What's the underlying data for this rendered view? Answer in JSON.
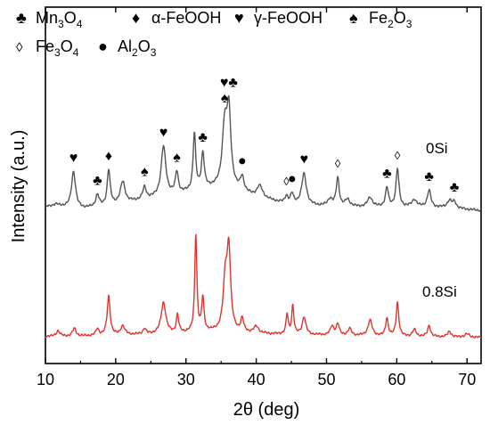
{
  "chart_data": {
    "type": "line",
    "title": "",
    "xlabel": "2θ (deg)",
    "ylabel": "Intensity (a.u.)",
    "xlim": [
      10,
      72
    ],
    "x_ticks": [
      10,
      20,
      30,
      40,
      50,
      60,
      70
    ],
    "y_ticks_shown": false,
    "grid": false,
    "legend_position": "top",
    "legend": [
      {
        "symbol": "♣",
        "parts": [
          {
            "t": "Mn"
          },
          {
            "t": "3",
            "sub": true
          },
          {
            "t": "O"
          },
          {
            "t": "4",
            "sub": true
          }
        ]
      },
      {
        "symbol": "♦",
        "parts": [
          {
            "t": "α-FeOOH"
          }
        ]
      },
      {
        "symbol": "♥",
        "parts": [
          {
            "t": "γ-FeOOH"
          }
        ]
      },
      {
        "symbol": "♠",
        "parts": [
          {
            "t": "Fe"
          },
          {
            "t": "2",
            "sub": true
          },
          {
            "t": "O"
          },
          {
            "t": "3",
            "sub": true
          }
        ]
      },
      {
        "symbol": "◊",
        "parts": [
          {
            "t": "Fe"
          },
          {
            "t": "3",
            "sub": true
          },
          {
            "t": "O"
          },
          {
            "t": "4",
            "sub": true
          }
        ]
      },
      {
        "symbol": "●",
        "parts": [
          {
            "t": "Al"
          },
          {
            "t": "2",
            "sub": true
          },
          {
            "t": "O"
          },
          {
            "t": "3",
            "sub": true
          }
        ]
      }
    ],
    "series": [
      {
        "name": "0Si",
        "color": "#555555",
        "baseline": [
          [
            10,
            0.08
          ],
          [
            11.5,
            0.1
          ],
          [
            14,
            0.06
          ],
          [
            18,
            0.08
          ],
          [
            22,
            0.12
          ],
          [
            26,
            0.16
          ],
          [
            30,
            0.2
          ],
          [
            34,
            0.24
          ],
          [
            37,
            0.22
          ],
          [
            40,
            0.16
          ],
          [
            44,
            0.11
          ],
          [
            48,
            0.09
          ],
          [
            52,
            0.08
          ],
          [
            56,
            0.08
          ],
          [
            60,
            0.08
          ],
          [
            64,
            0.08
          ],
          [
            68,
            0.07
          ],
          [
            72,
            0.05
          ]
        ],
        "peaks": [
          {
            "x": 14.0,
            "h": 0.32,
            "w": 0.35
          },
          {
            "x": 17.4,
            "h": 0.1,
            "w": 0.3
          },
          {
            "x": 19.0,
            "h": 0.3,
            "w": 0.25
          },
          {
            "x": 21.0,
            "h": 0.18,
            "w": 0.4
          },
          {
            "x": 24.1,
            "h": 0.1,
            "w": 0.3
          },
          {
            "x": 26.8,
            "h": 0.42,
            "w": 0.4
          },
          {
            "x": 28.7,
            "h": 0.18,
            "w": 0.25
          },
          {
            "x": 31.2,
            "h": 0.48,
            "w": 0.22
          },
          {
            "x": 32.4,
            "h": 0.3,
            "w": 0.25
          },
          {
            "x": 35.5,
            "h": 0.5,
            "w": 0.4
          },
          {
            "x": 36.1,
            "h": 0.62,
            "w": 0.35
          },
          {
            "x": 38.0,
            "h": 0.12,
            "w": 0.3
          },
          {
            "x": 40.5,
            "h": 0.1,
            "w": 0.5
          },
          {
            "x": 44.3,
            "h": 0.06,
            "w": 0.25
          },
          {
            "x": 45.1,
            "h": 0.08,
            "w": 0.25
          },
          {
            "x": 46.8,
            "h": 0.26,
            "w": 0.4
          },
          {
            "x": 50.5,
            "h": 0.06,
            "w": 0.4
          },
          {
            "x": 51.6,
            "h": 0.24,
            "w": 0.25
          },
          {
            "x": 53.0,
            "h": 0.06,
            "w": 0.4
          },
          {
            "x": 56.2,
            "h": 0.08,
            "w": 0.4
          },
          {
            "x": 58.6,
            "h": 0.16,
            "w": 0.25
          },
          {
            "x": 60.1,
            "h": 0.32,
            "w": 0.25
          },
          {
            "x": 62.5,
            "h": 0.06,
            "w": 0.4
          },
          {
            "x": 64.6,
            "h": 0.14,
            "w": 0.3
          },
          {
            "x": 67.5,
            "h": 0.06,
            "w": 0.4
          },
          {
            "x": 68.2,
            "h": 0.05,
            "w": 0.3
          }
        ]
      },
      {
        "name": "0.8Si",
        "color": "#e0352f",
        "baseline": [
          [
            10,
            0.02
          ],
          [
            14,
            0.02
          ],
          [
            20,
            0.03
          ],
          [
            26,
            0.04
          ],
          [
            30,
            0.05
          ],
          [
            34,
            0.06
          ],
          [
            38,
            0.05
          ],
          [
            42,
            0.04
          ],
          [
            50,
            0.03
          ],
          [
            60,
            0.02
          ],
          [
            72,
            0.01
          ]
        ],
        "peaks": [
          {
            "x": 11.8,
            "h": 0.05,
            "w": 0.3
          },
          {
            "x": 14.1,
            "h": 0.07,
            "w": 0.3
          },
          {
            "x": 17.4,
            "h": 0.06,
            "w": 0.25
          },
          {
            "x": 19.0,
            "h": 0.35,
            "w": 0.25
          },
          {
            "x": 21.0,
            "h": 0.08,
            "w": 0.35
          },
          {
            "x": 24.1,
            "h": 0.05,
            "w": 0.25
          },
          {
            "x": 26.8,
            "h": 0.28,
            "w": 0.4
          },
          {
            "x": 28.8,
            "h": 0.16,
            "w": 0.2
          },
          {
            "x": 31.4,
            "h": 0.88,
            "w": 0.18
          },
          {
            "x": 32.4,
            "h": 0.3,
            "w": 0.2
          },
          {
            "x": 35.6,
            "h": 0.45,
            "w": 0.35
          },
          {
            "x": 36.1,
            "h": 0.7,
            "w": 0.3
          },
          {
            "x": 38.0,
            "h": 0.12,
            "w": 0.25
          },
          {
            "x": 40.0,
            "h": 0.06,
            "w": 0.4
          },
          {
            "x": 44.4,
            "h": 0.18,
            "w": 0.18
          },
          {
            "x": 45.2,
            "h": 0.26,
            "w": 0.18
          },
          {
            "x": 46.8,
            "h": 0.16,
            "w": 0.3
          },
          {
            "x": 50.8,
            "h": 0.08,
            "w": 0.3
          },
          {
            "x": 51.6,
            "h": 0.1,
            "w": 0.25
          },
          {
            "x": 53.3,
            "h": 0.06,
            "w": 0.3
          },
          {
            "x": 56.2,
            "h": 0.14,
            "w": 0.35
          },
          {
            "x": 58.6,
            "h": 0.16,
            "w": 0.22
          },
          {
            "x": 60.1,
            "h": 0.3,
            "w": 0.22
          },
          {
            "x": 62.5,
            "h": 0.06,
            "w": 0.3
          },
          {
            "x": 64.6,
            "h": 0.1,
            "w": 0.25
          },
          {
            "x": 67.5,
            "h": 0.05,
            "w": 0.3
          },
          {
            "x": 70.0,
            "h": 0.03,
            "w": 0.4
          }
        ]
      }
    ],
    "peak_markers": [
      {
        "symbol": "♥",
        "x": 14.0
      },
      {
        "symbol": "♣",
        "x": 17.4
      },
      {
        "symbol": "♦",
        "x": 19.0
      },
      {
        "symbol": "♠",
        "x": 24.1
      },
      {
        "symbol": "♥",
        "x": 26.8
      },
      {
        "symbol": "♠",
        "x": 28.7
      },
      {
        "symbol": "♣",
        "x": 32.4
      },
      {
        "symbol": "♠",
        "x": 35.5
      },
      {
        "symbol": "♥♣",
        "x": 36.1
      },
      {
        "symbol": "●",
        "x": 38.0
      },
      {
        "symbol": "◊",
        "x": 44.3
      },
      {
        "symbol": "●",
        "x": 45.1
      },
      {
        "symbol": "♥",
        "x": 46.8
      },
      {
        "symbol": "◊",
        "x": 51.6
      },
      {
        "symbol": "♣",
        "x": 58.6
      },
      {
        "symbol": "◊",
        "x": 60.1
      },
      {
        "symbol": "♣",
        "x": 64.6
      },
      {
        "symbol": "♣",
        "x": 68.2
      }
    ]
  }
}
